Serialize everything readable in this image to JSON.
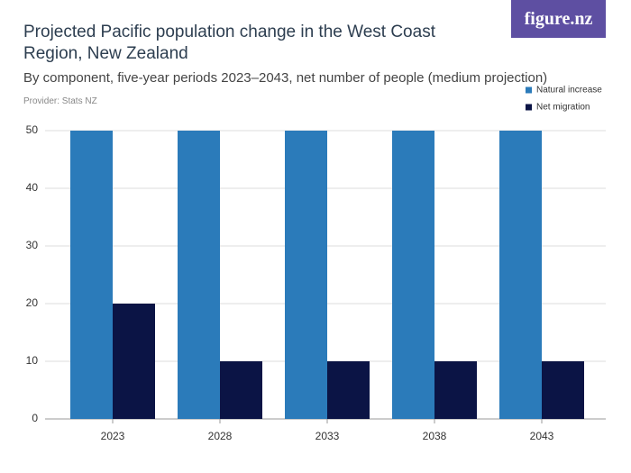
{
  "brand": "figure.nz",
  "chart_data": {
    "type": "bar",
    "title": "Projected Pacific population change in the West Coast Region, New Zealand",
    "subtitle": "By component, five-year periods 2023–2043, net number of people (medium projection)",
    "source": "Provider: Stats NZ",
    "categories": [
      "2023",
      "2028",
      "2033",
      "2038",
      "2043"
    ],
    "series": [
      {
        "name": "Natural increase",
        "color": "#2b7bba",
        "values": [
          50,
          50,
          50,
          50,
          50
        ]
      },
      {
        "name": "Net migration",
        "color": "#0b1445",
        "values": [
          20,
          10,
          10,
          10,
          10
        ]
      }
    ],
    "ylim": [
      0,
      50
    ],
    "yticks": [
      0,
      10,
      20,
      30,
      40,
      50
    ],
    "grid": true,
    "legend": "top-right"
  }
}
